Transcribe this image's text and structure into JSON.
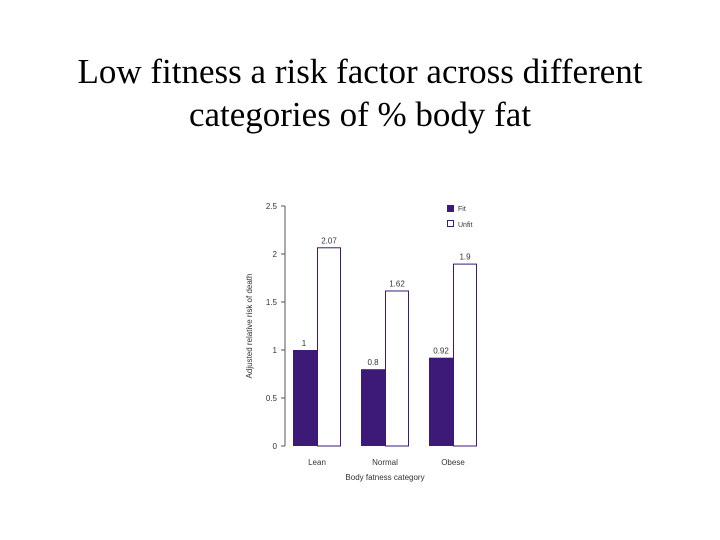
{
  "slide": {
    "title_line1": "Low fitness a risk factor across different",
    "title_line2": "categories of % body fat"
  },
  "chart_data": {
    "type": "bar",
    "title": "",
    "xlabel": "Body fatness category",
    "ylabel": "Adjusted relative risk of death",
    "categories": [
      "Lean",
      "Normal",
      "Obese"
    ],
    "series": [
      {
        "name": "Fit",
        "values": [
          1,
          0.8,
          0.92
        ],
        "labels": [
          "1",
          "0.8",
          "0.92"
        ],
        "color": "#3d1a78",
        "filled": true
      },
      {
        "name": "Unfit",
        "values": [
          2.07,
          1.62,
          1.9
        ],
        "labels": [
          "2.07",
          "1.62",
          "1.9"
        ],
        "color": "#3d1a78",
        "filled": false
      }
    ],
    "ylim": [
      0,
      2.5
    ],
    "yticks": [
      "0",
      "0.5",
      "1",
      "1.5",
      "2",
      "2.5"
    ],
    "legend_position": "top-right",
    "grid": false,
    "colors": {
      "fit_fill": "#3d1a78",
      "unfit_stroke": "#3d1a78",
      "axis": "#555555",
      "text": "#333333"
    }
  }
}
